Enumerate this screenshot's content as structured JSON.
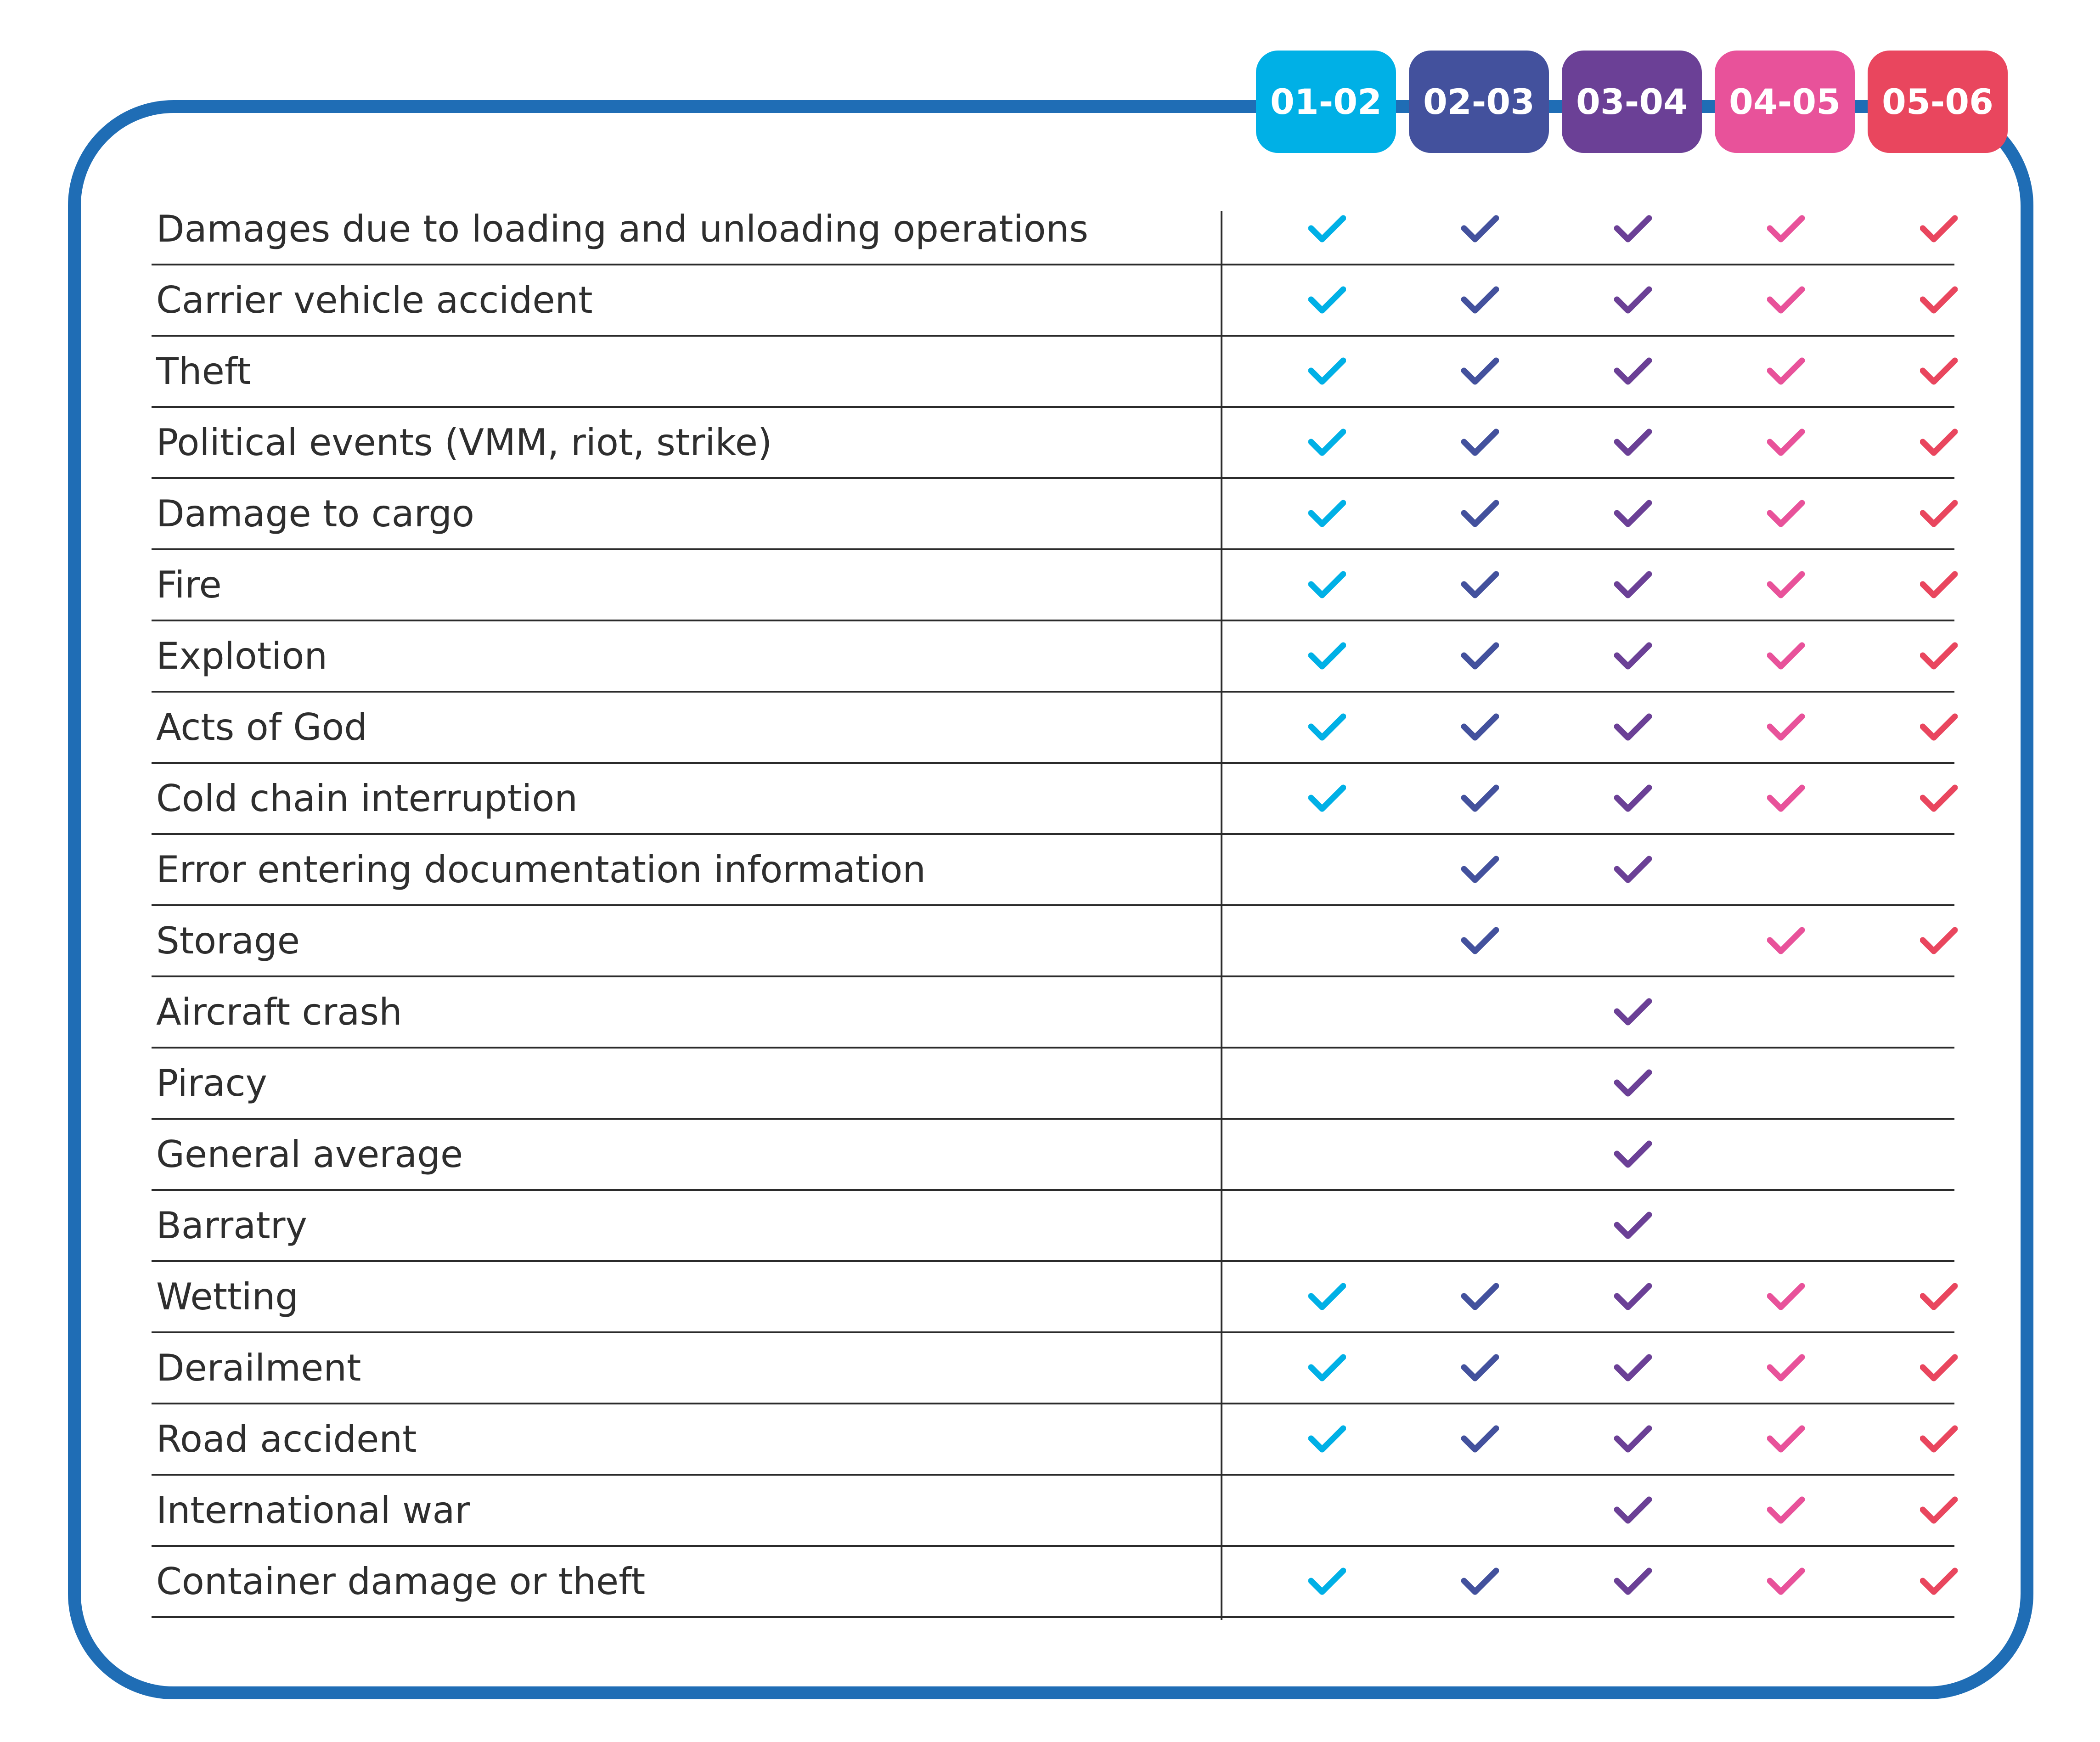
{
  "columns": [
    {
      "label": "01-02",
      "color": "#00b0e6"
    },
    {
      "label": "02-03",
      "color": "#43519d"
    },
    {
      "label": "03-04",
      "color": "#6b4096"
    },
    {
      "label": "04-05",
      "color": "#e8529a"
    },
    {
      "label": "05-06",
      "color": "#e9465e"
    }
  ],
  "frame_color": "#1f6db5",
  "check_icon": "check-icon",
  "rows": [
    {
      "label": "Damages due to loading and unloading operations",
      "checks": [
        true,
        true,
        true,
        true,
        true
      ]
    },
    {
      "label": "Carrier vehicle accident",
      "checks": [
        true,
        true,
        true,
        true,
        true
      ]
    },
    {
      "label": "Theft",
      "checks": [
        true,
        true,
        true,
        true,
        true
      ]
    },
    {
      "label": "Political events (VMM, riot, strike)",
      "checks": [
        true,
        true,
        true,
        true,
        true
      ]
    },
    {
      "label": "Damage to cargo",
      "checks": [
        true,
        true,
        true,
        true,
        true
      ]
    },
    {
      "label": "Fire",
      "checks": [
        true,
        true,
        true,
        true,
        true
      ]
    },
    {
      "label": "Explotion",
      "checks": [
        true,
        true,
        true,
        true,
        true
      ]
    },
    {
      "label": "Acts of God",
      "checks": [
        true,
        true,
        true,
        true,
        true
      ]
    },
    {
      "label": "Cold chain interruption",
      "checks": [
        true,
        true,
        true,
        true,
        true
      ]
    },
    {
      "label": "Error entering documentation information",
      "checks": [
        false,
        true,
        true,
        false,
        false
      ]
    },
    {
      "label": "Storage",
      "checks": [
        false,
        true,
        false,
        true,
        true
      ]
    },
    {
      "label": "Aircraft crash",
      "checks": [
        false,
        false,
        true,
        false,
        false
      ]
    },
    {
      "label": "Piracy",
      "checks": [
        false,
        false,
        true,
        false,
        false
      ]
    },
    {
      "label": "General average",
      "checks": [
        false,
        false,
        true,
        false,
        false
      ]
    },
    {
      "label": "Barratry",
      "checks": [
        false,
        false,
        true,
        false,
        false
      ]
    },
    {
      "label": "Wetting",
      "checks": [
        true,
        true,
        true,
        true,
        true
      ]
    },
    {
      "label": "Derailment",
      "checks": [
        true,
        true,
        true,
        true,
        true
      ]
    },
    {
      "label": "Road accident",
      "checks": [
        true,
        true,
        true,
        true,
        true
      ]
    },
    {
      "label": "International war",
      "checks": [
        false,
        false,
        true,
        true,
        true
      ]
    },
    {
      "label": "Container damage or theft",
      "checks": [
        true,
        true,
        true,
        true,
        true
      ]
    }
  ]
}
